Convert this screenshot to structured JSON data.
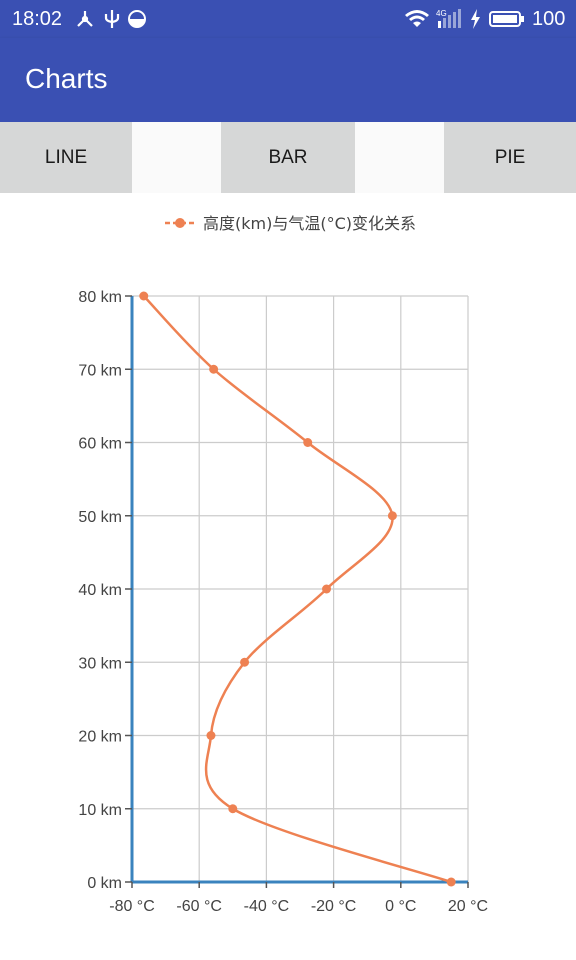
{
  "status_bar": {
    "time": "18:02",
    "battery": "100",
    "network": "4G",
    "icons_left": [
      "usb-tether-icon",
      "usb-icon",
      "data-saver-icon"
    ],
    "icons_right": [
      "wifi-icon",
      "signal-icon",
      "charging-icon",
      "battery-icon"
    ]
  },
  "app_bar": {
    "title": "Charts",
    "color": "#3a50b3"
  },
  "tabs": [
    {
      "label": "LINE"
    },
    {
      "label": "BAR"
    },
    {
      "label": "PIE"
    }
  ],
  "chart_data": {
    "type": "line",
    "legend": "高度(km)与气温(°C)变化关系",
    "legend_position": "top-center",
    "series": [
      {
        "name": "高度(km)与气温(°C)变化关系",
        "color": "#ee8152",
        "x": [
          15,
          -50,
          -56.5,
          -46.5,
          -22.1,
          -2.5,
          -27.7,
          -55.7,
          -76.5
        ],
        "y": [
          0,
          10,
          20,
          30,
          40,
          50,
          60,
          70,
          80
        ]
      }
    ],
    "xlim": [
      -80,
      20
    ],
    "ylim": [
      0,
      80
    ],
    "xticks": [
      "-80 °C",
      "-60 °C",
      "-40 °C",
      "-20 °C",
      "0 °C",
      "20 °C"
    ],
    "yticks": [
      "0 km",
      "10 km",
      "20 km",
      "30 km",
      "40 km",
      "50 km",
      "60 km",
      "70 km",
      "80 km"
    ],
    "grid": true,
    "axis_color": "#3a83be",
    "grid_color": "#cccccc"
  }
}
